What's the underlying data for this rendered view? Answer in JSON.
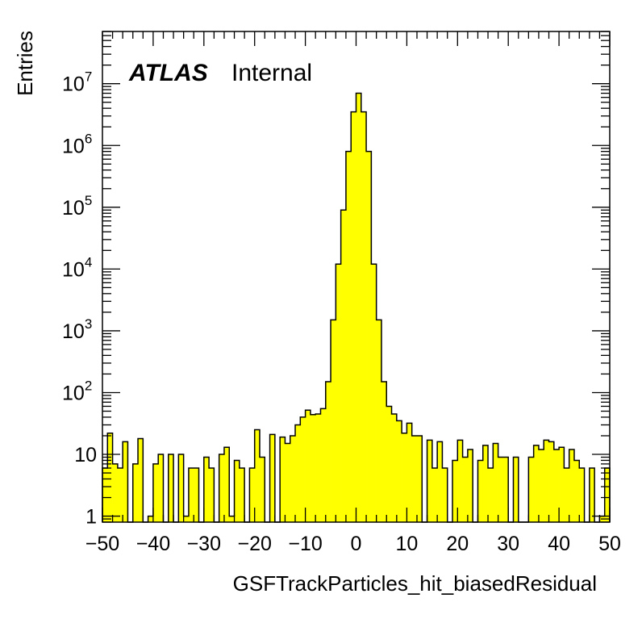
{
  "chart_data": {
    "type": "bar",
    "xlabel": "GSFTrackParticles_hit_biasedResidual",
    "ylabel": "Entries",
    "xlim": [
      -50,
      50
    ],
    "ylim": [
      0.8,
      70000000
    ],
    "log_y": true,
    "bin_width": 1,
    "annotation": {
      "experiment": "ATLAS",
      "status": "Internal"
    },
    "fill_color": "#ffff00",
    "line_color": "#000000",
    "x_ticks": [
      "−50",
      "−40",
      "−30",
      "−20",
      "−10",
      "0",
      "10",
      "20",
      "30",
      "40",
      "50"
    ],
    "y_ticks": [
      {
        "base": "1",
        "exp": ""
      },
      {
        "base": "10",
        "exp": ""
      },
      {
        "base": "10",
        "exp": "2"
      },
      {
        "base": "10",
        "exp": "3"
      },
      {
        "base": "10",
        "exp": "4"
      },
      {
        "base": "10",
        "exp": "5"
      },
      {
        "base": "10",
        "exp": "6"
      },
      {
        "base": "10",
        "exp": "7"
      }
    ],
    "bin_edges_start": -50,
    "values": [
      6,
      22,
      7,
      6,
      16,
      0,
      7,
      18,
      0,
      1,
      7,
      10,
      0,
      10,
      0,
      10,
      1,
      6,
      6,
      0,
      9,
      6,
      0,
      10,
      13,
      1,
      8,
      6,
      0,
      6,
      25,
      9,
      0,
      21,
      0,
      19,
      15,
      20,
      30,
      40,
      52,
      44,
      45,
      55,
      150,
      1500,
      12000,
      90000,
      800000,
      3500000,
      7000000,
      3500000,
      800000,
      12000,
      1500,
      150,
      60,
      45,
      35,
      22,
      32,
      20,
      20,
      0,
      17,
      6,
      16,
      6,
      0,
      8,
      17,
      9,
      12,
      0,
      8,
      14,
      6,
      15,
      9,
      9,
      0,
      9,
      0,
      0,
      9,
      14,
      12,
      17,
      16,
      12,
      13,
      6,
      12,
      8,
      6,
      0,
      6,
      0,
      1,
      6
    ]
  }
}
